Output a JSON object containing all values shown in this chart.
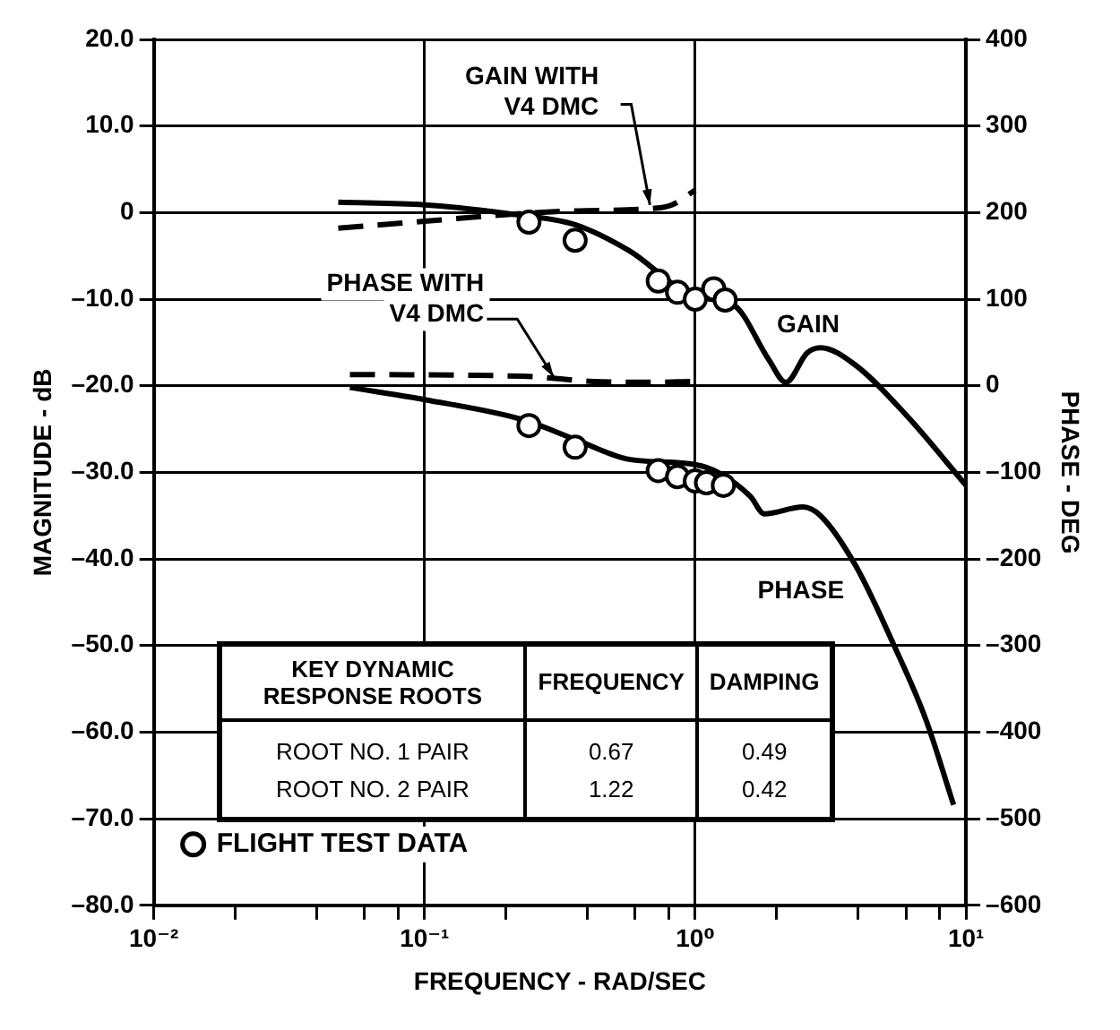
{
  "chart_data": {
    "type": "line",
    "xlabel": "FREQUENCY - RAD/SEC",
    "ylabel": "MAGNITUDE - dB",
    "y2label": "PHASE - DEG",
    "log": "x",
    "grid": true,
    "legend": "bottom left",
    "xlim": [
      0.01,
      10
    ],
    "xticks": [
      {
        "value": 0.01,
        "label": "10⁻²"
      },
      {
        "value": 0.02,
        "label": null
      },
      {
        "value": 0.04,
        "label": null
      },
      {
        "value": 0.06,
        "label": null
      },
      {
        "value": 0.08,
        "label": null
      },
      {
        "value": 0.1,
        "label": "10⁻¹"
      },
      {
        "value": 0.2,
        "label": null
      },
      {
        "value": 0.4,
        "label": null
      },
      {
        "value": 0.6,
        "label": null
      },
      {
        "value": 0.8,
        "label": null
      },
      {
        "value": 1,
        "label": "10⁰"
      },
      {
        "value": 2,
        "label": null
      },
      {
        "value": 4,
        "label": null
      },
      {
        "value": 6,
        "label": null
      },
      {
        "value": 8,
        "label": null
      },
      {
        "value": 10,
        "label": "10¹"
      }
    ],
    "ylim": [
      -80,
      20
    ],
    "yticks": [
      {
        "value": 20,
        "label": "20.0"
      },
      {
        "value": 10,
        "label": "10.0"
      },
      0,
      {
        "value": -10,
        "label": "–10.0"
      },
      {
        "value": -20,
        "label": "–20.0"
      },
      {
        "value": -30,
        "label": "–30.0"
      },
      {
        "value": -40,
        "label": "–40.0"
      },
      {
        "value": -50,
        "label": "–50.0"
      },
      {
        "value": -60,
        "label": "–60.0"
      },
      {
        "value": -70,
        "label": "–70.0"
      },
      {
        "value": -80,
        "label": "–80.0"
      }
    ],
    "y2lim": [
      -600,
      400
    ],
    "y2ticks": [
      400,
      300,
      200,
      100,
      0,
      {
        "value": -100,
        "label": "–100"
      },
      {
        "value": -200,
        "label": "–200"
      },
      {
        "value": -300,
        "label": "–300"
      },
      {
        "value": -400,
        "label": "–400"
      },
      {
        "value": -500,
        "label": "–500"
      },
      {
        "value": -600,
        "label": "–600"
      }
    ],
    "series": [
      {
        "name": "GAIN",
        "color": "#000000",
        "marker": "none",
        "line_style": "solid",
        "x": [
          0.048,
          0.1,
          0.2,
          0.36,
          0.57,
          1.0,
          1.39,
          1.87,
          2.16,
          2.59,
          2.9,
          3.9,
          6.1,
          10
        ],
        "values": [
          1.2,
          0.9,
          -0.1,
          -1.4,
          -4.4,
          -9.7,
          -10.7,
          -17,
          -19.6,
          -16.2,
          -15.6,
          -17.6,
          -23.6,
          -31.5
        ]
      },
      {
        "name": "GAIN WITH V4 DMC",
        "color": "#000000",
        "marker": "none",
        "line_style": "dashed",
        "x": [
          0.048,
          0.1,
          0.23,
          0.36,
          0.71,
          0.82,
          1.0
        ],
        "values": [
          -1.8,
          -1.0,
          -0.1,
          0.2,
          0.5,
          0.9,
          2.6
        ]
      },
      {
        "name": "PHASE",
        "axis": "y2",
        "color": "#000000",
        "marker": "none",
        "line_style": "solid",
        "x": [
          0.053,
          0.1,
          0.23,
          0.36,
          0.57,
          1.0,
          1.23,
          1.6,
          1.8,
          2.5,
          2.9,
          3.9,
          5.3,
          7.1,
          9.0
        ],
        "values": [
          -2,
          -16,
          -39,
          -62,
          -85,
          -91,
          -101,
          -128,
          -148,
          -140,
          -150,
          -207,
          -293,
          -385,
          -484
        ]
      },
      {
        "name": "PHASE WITH V4 DMC",
        "axis": "y2",
        "color": "#000000",
        "marker": "none",
        "line_style": "dashed",
        "x": [
          0.053,
          0.23,
          0.42,
          0.66,
          1.0
        ],
        "values": [
          13,
          11,
          5,
          4,
          5
        ]
      },
      {
        "name": "FLIGHT TEST DATA",
        "type": "scatter",
        "color": "#000000",
        "marker": "circle",
        "x": [
          0.243,
          0.36,
          0.73,
          0.86,
          1.0,
          1.17,
          1.29
        ],
        "values": [
          -1.1,
          -3.2,
          -7.9,
          -9.2,
          -10.0,
          -8.8,
          -10.1
        ]
      },
      {
        "type": "scatter",
        "axis": "y2",
        "color": "#000000",
        "marker": "circle",
        "x": [
          0.243,
          0.36,
          0.73,
          0.86,
          1.0,
          1.1,
          1.27
        ],
        "values": [
          -46,
          -71,
          -98,
          -105,
          -110,
          -112,
          -115
        ]
      }
    ],
    "annotations": [
      "KEY DYNAMIC RESPONSE ROOTS",
      "FREQUENCY",
      "DAMPING",
      "ROOT NO. 1 PAIR",
      "0.67",
      "0.49",
      "ROOT NO. 2 PAIR",
      "1.22",
      "0.42"
    ]
  }
}
